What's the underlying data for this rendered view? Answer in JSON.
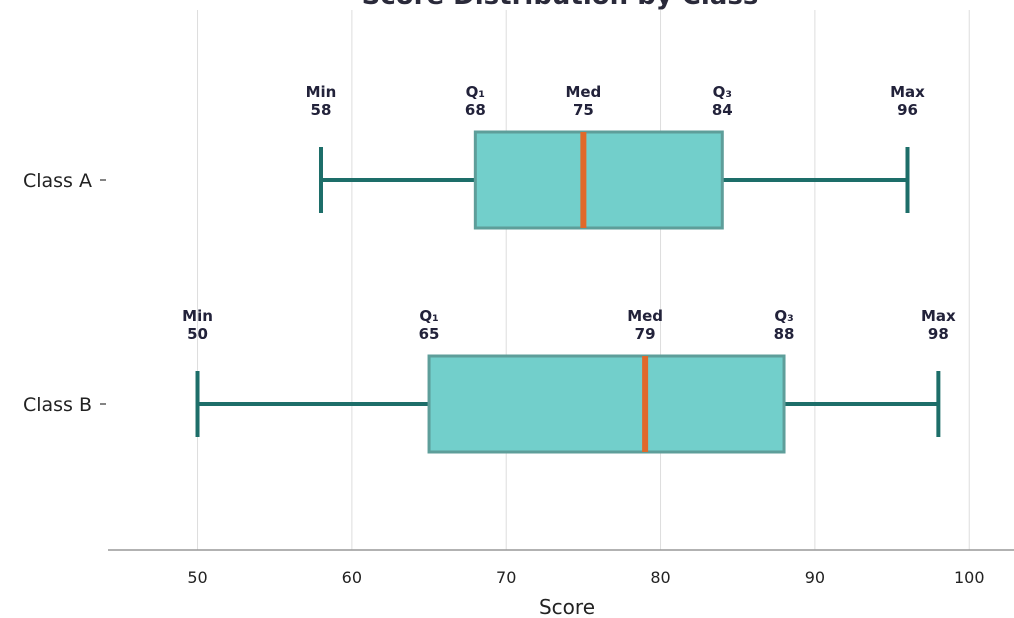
{
  "chart_data": {
    "type": "boxplot",
    "title": "Score Distribution by Class",
    "xlabel": "Score",
    "ylabel": "",
    "xlim": [
      44.2,
      102.9
    ],
    "xticks": [
      50,
      60,
      70,
      80,
      90,
      100
    ],
    "grid": "vertical",
    "categories": [
      "Class A",
      "Class B"
    ],
    "stat_labels": {
      "min": "Min",
      "q1": "Q₁",
      "median": "Med",
      "q3": "Q₃",
      "max": "Max"
    },
    "series": [
      {
        "category": "Class A",
        "min": 58,
        "q1": 68,
        "median": 75,
        "q3": 84,
        "max": 96
      },
      {
        "category": "Class B",
        "min": 50,
        "q1": 65,
        "median": 79,
        "q3": 88,
        "max": 98
      }
    ],
    "colors": {
      "box_fill": "#72cfcb",
      "box_edge": "#5e9e9a",
      "whisker": "#1d6e69",
      "median": "#e0692a",
      "grid": "#dddddd",
      "axis": "#999999"
    }
  }
}
